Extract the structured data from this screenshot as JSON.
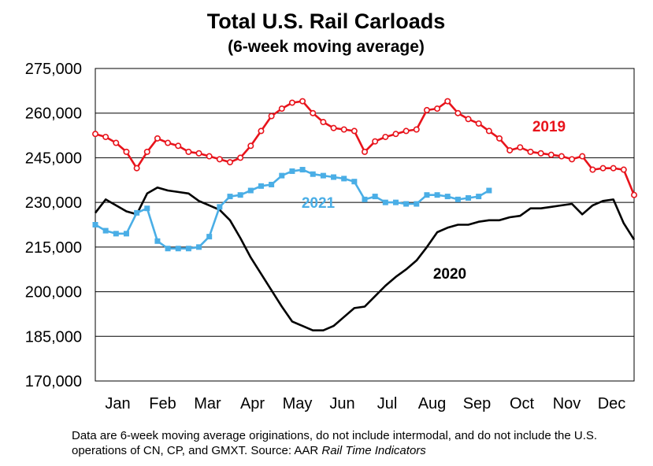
{
  "chart_data": {
    "type": "line",
    "title": "Total U.S. Rail Carloads",
    "subtitle": "(6-week moving average)",
    "xlabel": "",
    "ylabel": "",
    "ylim": [
      170000,
      275000
    ],
    "yticks": [
      170000,
      185000,
      200000,
      215000,
      230000,
      245000,
      260000,
      275000
    ],
    "ytick_labels": [
      "170,000",
      "185,000",
      "200,000",
      "215,000",
      "230,000",
      "245,000",
      "260,000",
      "275,000"
    ],
    "grid": "horizontal",
    "weeks_per_year": 52,
    "months": [
      "Jan",
      "Feb",
      "Mar",
      "Apr",
      "May",
      "Jun",
      "Jul",
      "Aug",
      "Sep",
      "Oct",
      "Nov",
      "Dec"
    ],
    "series": [
      {
        "name": "2019",
        "color": "#e8131b",
        "markers": "circle",
        "values": [
          253000,
          252000,
          250000,
          247000,
          241500,
          247000,
          251500,
          250000,
          249000,
          247000,
          246500,
          245500,
          244500,
          243500,
          245000,
          249000,
          254000,
          259000,
          261500,
          263500,
          264000,
          260000,
          257000,
          255000,
          254500,
          254000,
          247000,
          250500,
          252000,
          253000,
          254000,
          254500,
          261000,
          261500,
          264000,
          260000,
          258000,
          256500,
          254000,
          251500,
          247500,
          248500,
          247000,
          246500,
          246000,
          245500,
          244500,
          245500,
          241000,
          241500,
          241500,
          241000,
          232500
        ]
      },
      {
        "name": "2020",
        "color": "#000000",
        "markers": "none",
        "values": [
          226500,
          231000,
          229000,
          227000,
          226000,
          233000,
          235000,
          234000,
          233500,
          233000,
          230500,
          229000,
          227500,
          224000,
          218000,
          211500,
          206000,
          200500,
          195000,
          190000,
          188500,
          187000,
          187000,
          188500,
          191500,
          194500,
          195000,
          198500,
          202000,
          205000,
          207500,
          210500,
          215000,
          220000,
          221500,
          222500,
          222500,
          223500,
          224000,
          224000,
          225000,
          225500,
          228000,
          228000,
          228500,
          229000,
          229500,
          226000,
          229000,
          230500,
          231000,
          223000,
          217500
        ]
      },
      {
        "name": "2021",
        "color": "#4aaee6",
        "markers": "square",
        "values": [
          222500,
          220500,
          219500,
          219500,
          226500,
          228000,
          217000,
          214500,
          214500,
          214500,
          215000,
          218500,
          228500,
          232000,
          232500,
          234000,
          235500,
          236000,
          239000,
          240500,
          241000,
          239500,
          239000,
          238500,
          238000,
          237000,
          231000,
          232000,
          230000,
          230000,
          229500,
          229500,
          232500,
          232500,
          232000,
          231000,
          231500,
          232000,
          234000
        ]
      }
    ],
    "series_labels": [
      "2019",
      "2020",
      "2021"
    ]
  },
  "footnote": {
    "text_before": "Data are 6-week moving average originations, do not include intermodal, and do not include the U.S. operations of CN, CP, and GMXT.   Source: AAR ",
    "source_italic": "Rail Time Indicators"
  }
}
